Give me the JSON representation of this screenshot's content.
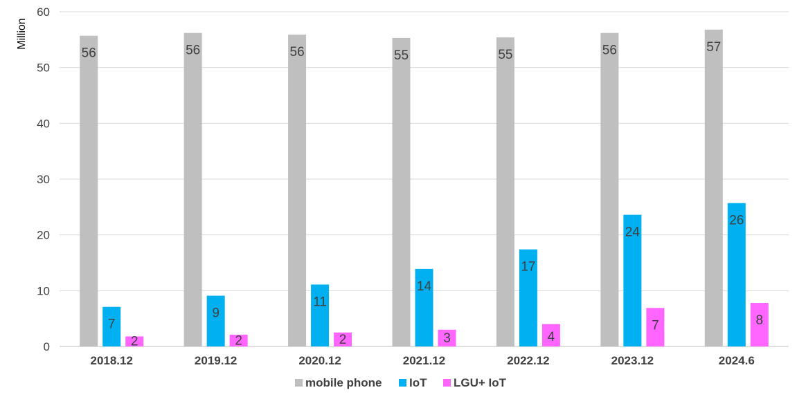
{
  "chart_data": {
    "type": "bar",
    "ylabel": "Million",
    "ylim": [
      0,
      60
    ],
    "yticks": [
      0,
      10,
      20,
      30,
      40,
      50,
      60
    ],
    "grid": true,
    "legend_position": "bottom",
    "categories": [
      "2018.12",
      "2019.12",
      "2020.12",
      "2021.12",
      "2022.12",
      "2023.12",
      "2024.6"
    ],
    "series": [
      {
        "name": "mobile phone",
        "color": "#bfbfbf",
        "values": [
          55.7,
          56.2,
          55.9,
          55.3,
          55.4,
          56.2,
          56.8
        ],
        "labels": [
          "56",
          "56",
          "56",
          "55",
          "55",
          "56",
          "57"
        ]
      },
      {
        "name": "IoT",
        "color": "#00b0f0",
        "values": [
          7.1,
          9.1,
          11.1,
          13.9,
          17.4,
          23.6,
          25.7
        ],
        "labels": [
          "7",
          "9",
          "11",
          "14",
          "17",
          "24",
          "26"
        ]
      },
      {
        "name": "LGU+ IoT",
        "color": "#ff66ff",
        "values": [
          1.8,
          2.1,
          2.5,
          3.0,
          4.0,
          6.9,
          7.8
        ],
        "labels": [
          "2",
          "2",
          "2",
          "3",
          "4",
          "7",
          "8"
        ]
      }
    ]
  }
}
